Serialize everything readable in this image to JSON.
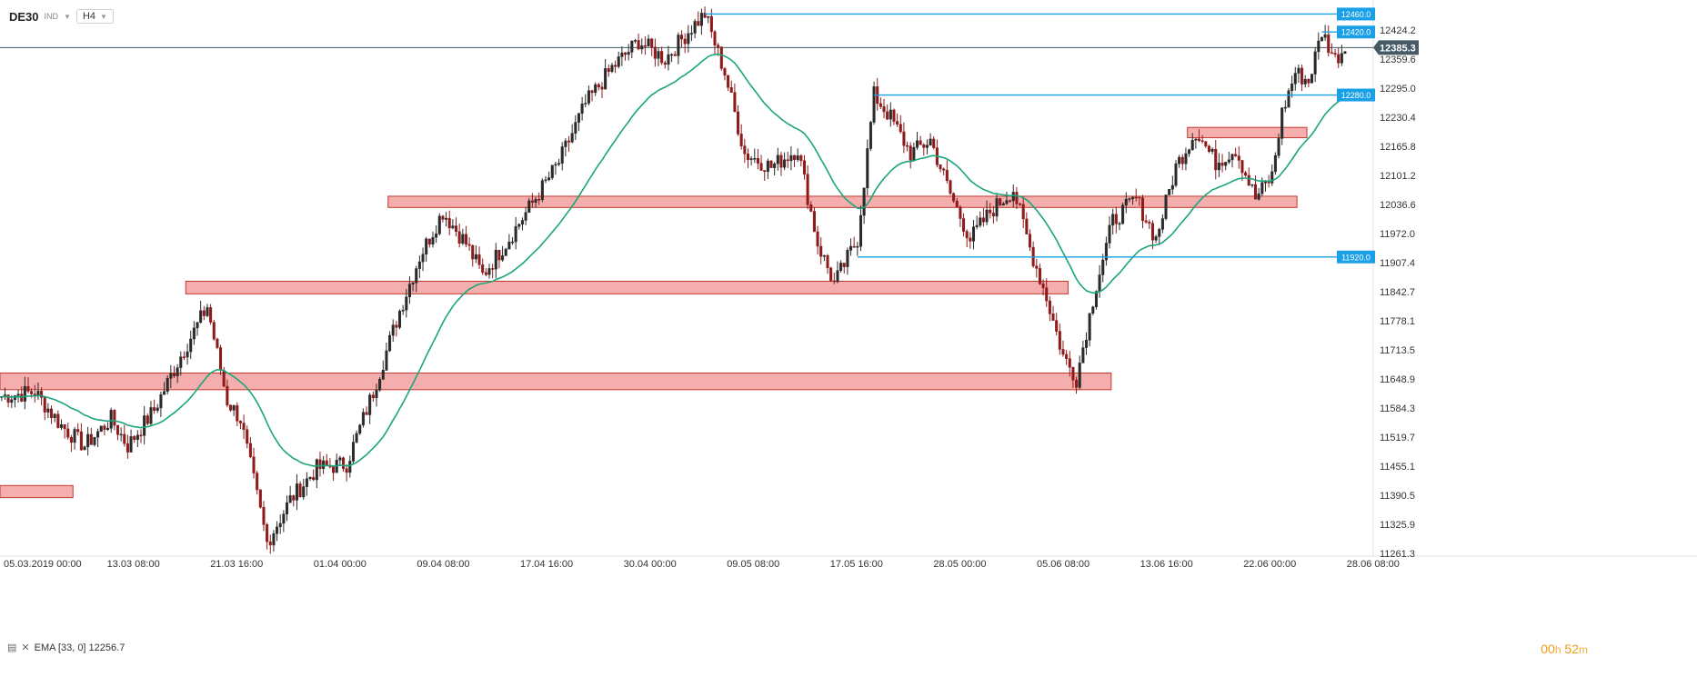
{
  "header": {
    "symbol": "DE30",
    "market_tag": "IND",
    "timeframe": "H4",
    "dropdown_icon": "chevron-down-icon"
  },
  "footer": {
    "indicator_text": "EMA  [33, 0]  12256.7",
    "indicator_icons": [
      "settings-icon",
      "close-icon"
    ],
    "timer": {
      "hours": "00",
      "h_unit": "h",
      "minutes": "52",
      "m_unit": "m"
    }
  },
  "colors": {
    "candle_up": "#2b2b2b",
    "candle_down": "#8e1b1b",
    "ema": "#1aa67a",
    "level_line": "#1aa0e6",
    "zone_fill": "#f2a0a0",
    "zone_border": "#c0392b",
    "current_price_bg": "#455a64"
  },
  "chart_data": {
    "type": "candlestick",
    "symbol": "DE30",
    "timeframe": "H4",
    "y_ticks": [
      12424.2,
      12359.6,
      12295.0,
      12230.4,
      12165.8,
      12101.2,
      12036.6,
      11972.0,
      11907.4,
      11842.7,
      11778.1,
      11713.5,
      11648.9,
      11584.3,
      11519.7,
      11455.1,
      11390.5,
      11325.9,
      11261.3
    ],
    "ylim": [
      11255,
      12475
    ],
    "x_ticks": [
      "05.03.2019  00:00",
      "13.03  08:00",
      "21.03  16:00",
      "01.04  00:00",
      "09.04  08:00",
      "17.04  16:00",
      "30.04  00:00",
      "09.05  08:00",
      "17.05  16:00",
      "28.05  00:00",
      "05.06  08:00",
      "13.06  16:00",
      "22.06  00:00",
      "28.06  08:00"
    ],
    "current_price": "12385.3",
    "price_path": [
      [
        0,
        11610
      ],
      [
        10,
        11620
      ],
      [
        18,
        11545
      ],
      [
        25,
        11500
      ],
      [
        33,
        11560
      ],
      [
        38,
        11500
      ],
      [
        46,
        11580
      ],
      [
        54,
        11700
      ],
      [
        62,
        11810
      ],
      [
        68,
        11600
      ],
      [
        72,
        11560
      ],
      [
        80,
        11285
      ],
      [
        87,
        11380
      ],
      [
        95,
        11450
      ],
      [
        104,
        11460
      ],
      [
        112,
        11620
      ],
      [
        120,
        11800
      ],
      [
        126,
        11920
      ],
      [
        133,
        12020
      ],
      [
        140,
        11950
      ],
      [
        145,
        11880
      ],
      [
        152,
        11950
      ],
      [
        160,
        12040
      ],
      [
        168,
        12130
      ],
      [
        176,
        12260
      ],
      [
        184,
        12340
      ],
      [
        192,
        12400
      ],
      [
        200,
        12360
      ],
      [
        208,
        12430
      ],
      [
        212,
        12460
      ],
      [
        218,
        12330
      ],
      [
        224,
        12150
      ],
      [
        232,
        12120
      ],
      [
        240,
        12160
      ],
      [
        246,
        11950
      ],
      [
        251,
        11860
      ],
      [
        258,
        11960
      ],
      [
        263,
        12280
      ],
      [
        268,
        12230
      ],
      [
        274,
        12150
      ],
      [
        280,
        12180
      ],
      [
        286,
        12060
      ],
      [
        292,
        11960
      ],
      [
        298,
        12020
      ],
      [
        305,
        12070
      ],
      [
        310,
        11940
      ],
      [
        315,
        11830
      ],
      [
        320,
        11700
      ],
      [
        324,
        11650
      ],
      [
        330,
        11860
      ],
      [
        335,
        12000
      ],
      [
        342,
        12050
      ],
      [
        348,
        11960
      ],
      [
        354,
        12120
      ],
      [
        360,
        12200
      ],
      [
        366,
        12130
      ],
      [
        372,
        12160
      ],
      [
        378,
        12050
      ],
      [
        383,
        12100
      ],
      [
        386,
        12240
      ],
      [
        390,
        12330
      ],
      [
        394,
        12310
      ],
      [
        398,
        12420
      ],
      [
        402,
        12360
      ],
      [
        405,
        12385
      ]
    ],
    "candle_count": 406,
    "ema": {
      "period": 33,
      "shift": 0,
      "last_value": 12256.7
    },
    "horizontal_levels": [
      {
        "label": "12460.0",
        "value": 12460.0,
        "from_candle": 212
      },
      {
        "label": "12420.0",
        "value": 12420.0,
        "from_candle": 398
      },
      {
        "label": "12280.0",
        "value": 12280.0,
        "from_candle": 263
      },
      {
        "label": "11920.0",
        "value": 11920.0,
        "from_candle": 258
      }
    ],
    "zones": [
      {
        "low": 12030,
        "high": 12055,
        "from_candle": 117,
        "to_candle": 390
      },
      {
        "low": 11838,
        "high": 11866,
        "from_candle": 56,
        "to_candle": 321
      },
      {
        "low": 11625,
        "high": 11662,
        "from_candle": 0,
        "to_candle": 334
      },
      {
        "low": 12185,
        "high": 12208,
        "from_candle": 358,
        "to_candle": 393
      },
      {
        "low": 11385,
        "high": 11412,
        "from_candle": 0,
        "to_candle": 21
      }
    ]
  }
}
